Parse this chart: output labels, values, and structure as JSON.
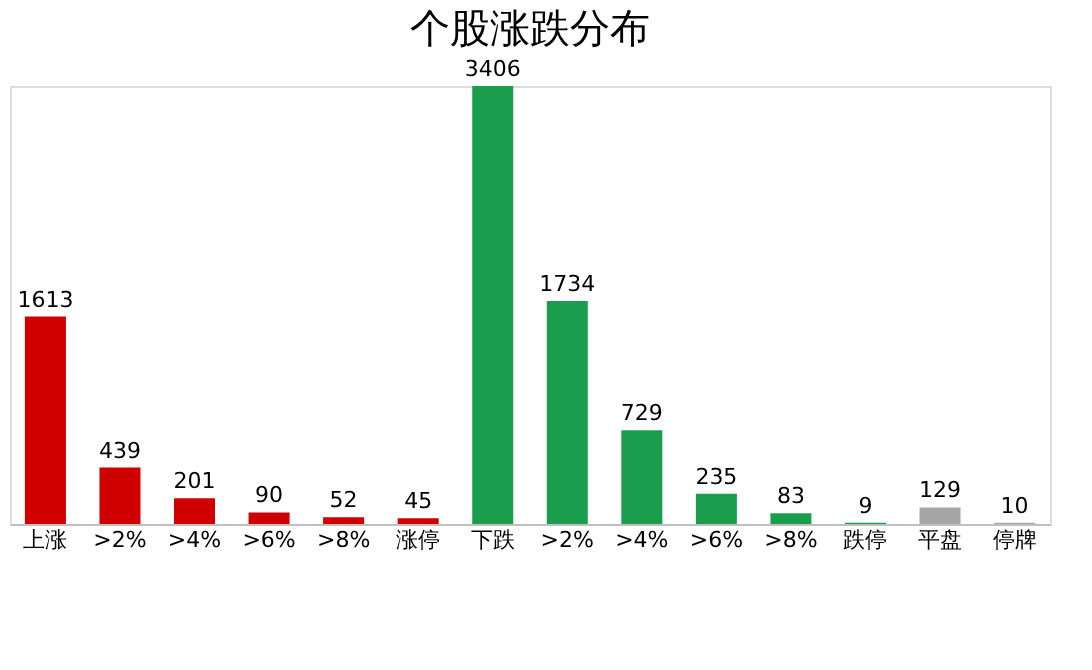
{
  "chart_data": {
    "type": "bar",
    "title": "个股涨跌分布",
    "categories": [
      "上涨",
      ">2%",
      ">4%",
      ">6%",
      ">8%",
      "涨停",
      "下跌",
      ">2%",
      ">4%",
      ">6%",
      ">8%",
      "跌停",
      "平盘",
      "停牌"
    ],
    "values": [
      1613,
      439,
      201,
      90,
      52,
      45,
      3406,
      1734,
      729,
      235,
      83,
      9,
      129,
      10
    ],
    "colors": [
      "#d00000",
      "#d00000",
      "#d00000",
      "#d00000",
      "#d00000",
      "#d00000",
      "#1a9e4e",
      "#1a9e4e",
      "#1a9e4e",
      "#1a9e4e",
      "#1a9e4e",
      "#1a9e4e",
      "#a6a6a6",
      "#a6a6a6"
    ],
    "data_labels": true,
    "grid": false,
    "legend": false
  }
}
